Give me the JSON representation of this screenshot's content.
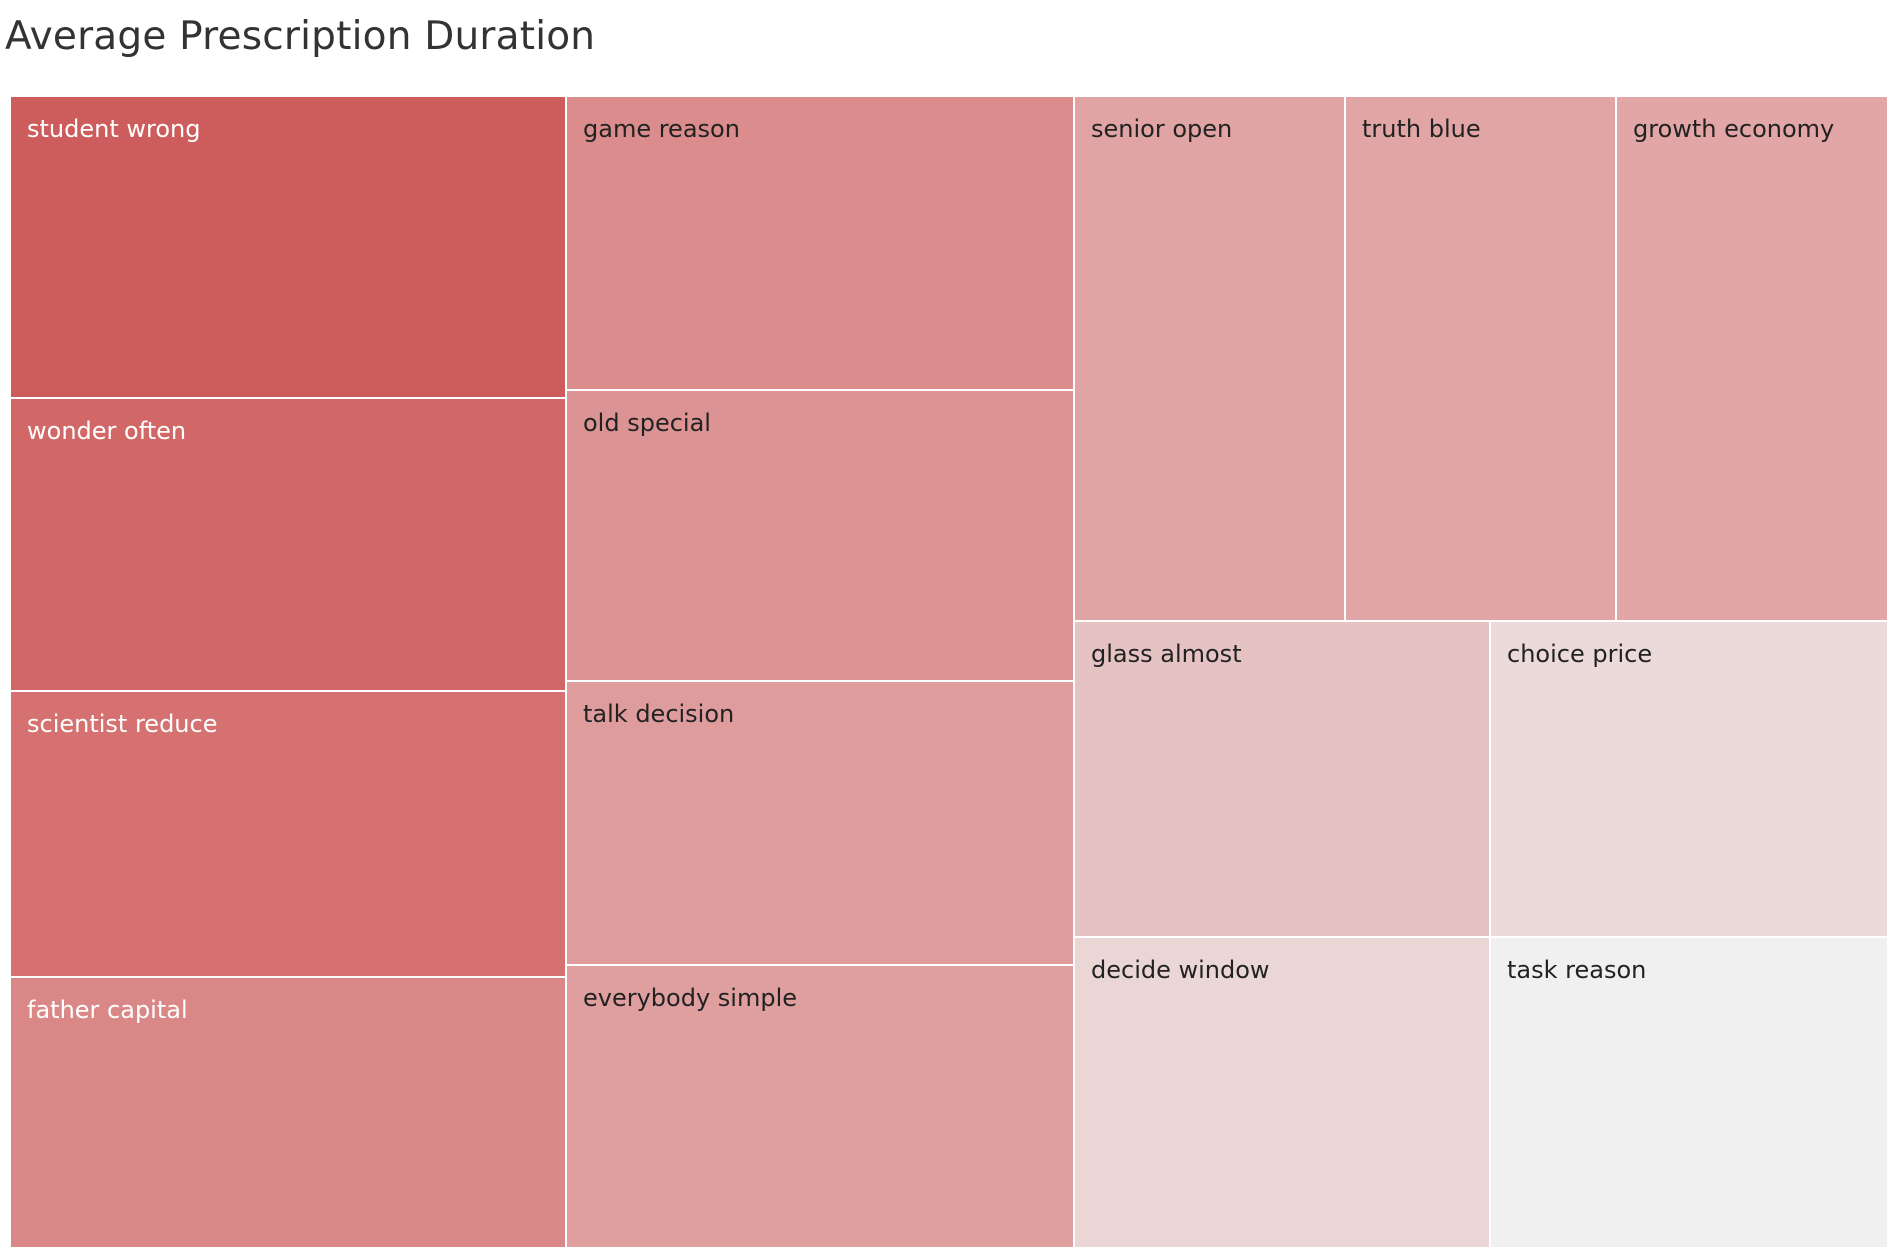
{
  "chart_data": {
    "type": "treemap",
    "title": "Average Prescription Duration",
    "items": [
      {
        "label": "student wrong",
        "value": 10.0,
        "color": "#cd5c5c"
      },
      {
        "label": "wonder often",
        "value": 9.7,
        "color": "#d26767"
      },
      {
        "label": "scientist reduce",
        "value": 9.5,
        "color": "#d67171"
      },
      {
        "label": "father capital",
        "value": 9.0,
        "color": "#da8787"
      },
      {
        "label": "game reason",
        "value": 8.6,
        "color": "#db8d8d"
      },
      {
        "label": "old special",
        "value": 8.5,
        "color": "#dc9393"
      },
      {
        "label": "talk decision",
        "value": 8.3,
        "color": "#df9c9c"
      },
      {
        "label": "everybody simple",
        "value": 8.3,
        "color": "#e09f9f"
      },
      {
        "label": "senior open",
        "value": 8.2,
        "color": "#e1a4a4"
      },
      {
        "label": "truth blue",
        "value": 8.2,
        "color": "#e2a5a5"
      },
      {
        "label": "growth economy",
        "value": 8.2,
        "color": "#e2a6a6"
      },
      {
        "label": "glass almost",
        "value": 7.8,
        "color": "#e6c3c3"
      },
      {
        "label": "choice price",
        "value": 7.7,
        "color": "#ecdadb"
      },
      {
        "label": "decide window",
        "value": 7.7,
        "color": "#ebd6d6"
      },
      {
        "label": "task reason",
        "value": 7.6,
        "color": "#f0f0f0"
      }
    ]
  }
}
